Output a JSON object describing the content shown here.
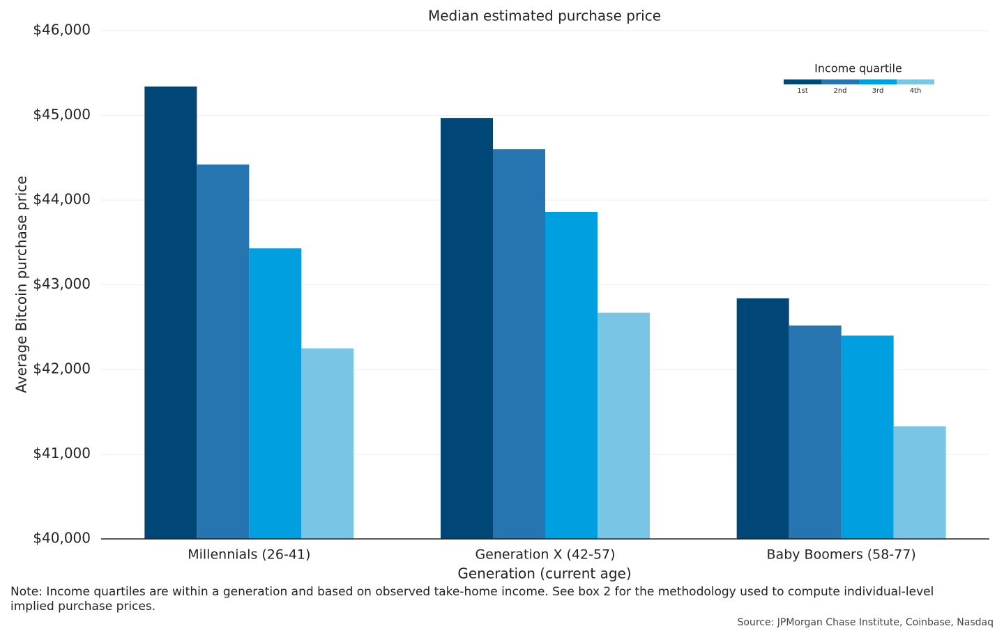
{
  "chart_data": {
    "type": "bar",
    "title": "Median estimated purchase price",
    "x_label": "Generation (current age)",
    "y_label": "Average Bitcoin purchase price",
    "categories": [
      "Millennials (26-41)",
      "Generation X (42-57)",
      "Baby Boomers (58-77)"
    ],
    "legend_title": "Income quartile",
    "legend_position": "top-right",
    "grid": true,
    "series": [
      {
        "name": "1st",
        "color": "#004677",
        "values": [
          45340,
          44970,
          42840
        ]
      },
      {
        "name": "2nd",
        "color": "#2775b0",
        "values": [
          44420,
          44600,
          42520
        ]
      },
      {
        "name": "3rd",
        "color": "#009fe0",
        "values": [
          43430,
          43860,
          42400
        ]
      },
      {
        "name": "4th",
        "color": "#78c5e6",
        "values": [
          42250,
          42670,
          41330
        ]
      }
    ],
    "ylim": [
      40000,
      46000
    ],
    "yticks": [
      {
        "value": 40000,
        "label": "$40,000"
      },
      {
        "value": 41000,
        "label": "$41,000"
      },
      {
        "value": 42000,
        "label": "$42,000"
      },
      {
        "value": 43000,
        "label": "$43,000"
      },
      {
        "value": 44000,
        "label": "$44,000"
      },
      {
        "value": 45000,
        "label": "$45,000"
      },
      {
        "value": 46000,
        "label": "$46,000"
      }
    ],
    "note": "Note: Income quartiles are within a generation and based on observed take-home income. See box 2 for the methodology used to compute individual-level implied purchase prices.",
    "source": "Source: JPMorgan Chase Institute, Coinbase, Nasdaq"
  }
}
